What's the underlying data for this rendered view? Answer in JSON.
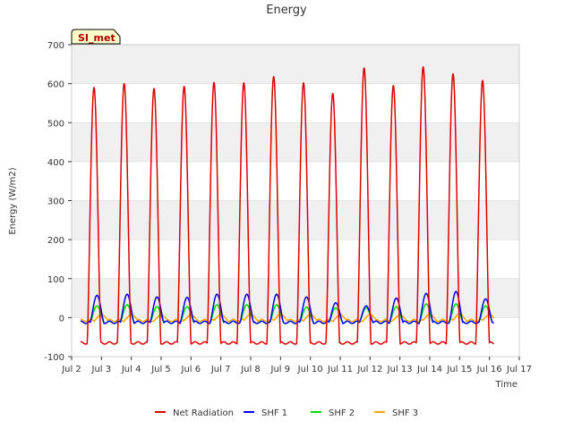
{
  "chart_data": {
    "type": "line",
    "title": "Energy",
    "xlabel": "Time",
    "ylabel": "Energy (W/m2)",
    "ylim": [
      -100,
      700
    ],
    "xlim": [
      2,
      17
    ],
    "yticks": [
      -100,
      0,
      100,
      200,
      300,
      400,
      500,
      600,
      700
    ],
    "xticks": [
      {
        "v": 2,
        "label": "Jul 2"
      },
      {
        "v": 3,
        "label": "Jul 3"
      },
      {
        "v": 4,
        "label": "Jul 4"
      },
      {
        "v": 5,
        "label": "Jul 5"
      },
      {
        "v": 6,
        "label": "Jul 6"
      },
      {
        "v": 7,
        "label": "Jul 7"
      },
      {
        "v": 8,
        "label": "Jul 8"
      },
      {
        "v": 9,
        "label": "Jul 9"
      },
      {
        "v": 10,
        "label": "Jul 10"
      },
      {
        "v": 11,
        "label": "Jul 11"
      },
      {
        "v": 12,
        "label": "Jul 12"
      },
      {
        "v": 13,
        "label": "Jul 13"
      },
      {
        "v": 14,
        "label": "Jul 14"
      },
      {
        "v": 15,
        "label": "Jul 15"
      },
      {
        "v": 16,
        "label": "Jul 16"
      },
      {
        "v": 17,
        "label": "Jul 17"
      }
    ],
    "grid": true,
    "annotation": "SI_met",
    "legend_position": "bottom",
    "data_start": 2.3,
    "data_end": 16.15,
    "series": [
      {
        "name": "Net Radiation",
        "color": "#dd0000",
        "night": -65,
        "days": [
          {
            "noon": 2.75,
            "peak": 590
          },
          {
            "noon": 3.76,
            "peak": 600
          },
          {
            "noon": 4.76,
            "peak": 587
          },
          {
            "noon": 5.77,
            "peak": 593
          },
          {
            "noon": 6.77,
            "peak": 603
          },
          {
            "noon": 7.77,
            "peak": 602
          },
          {
            "noon": 8.77,
            "peak": 618
          },
          {
            "noon": 9.77,
            "peak": 602
          },
          {
            "noon": 10.75,
            "peak": 575
          },
          {
            "noon": 11.8,
            "peak": 640
          },
          {
            "noon": 12.78,
            "peak": 595
          },
          {
            "noon": 13.78,
            "peak": 643
          },
          {
            "noon": 14.78,
            "peak": 625
          },
          {
            "noon": 15.77,
            "peak": 608
          }
        ]
      },
      {
        "name": "SHF 1",
        "color": "#0000ee",
        "night": -12,
        "days": [
          {
            "noon": 2.85,
            "peak": 57
          },
          {
            "noon": 3.86,
            "peak": 60
          },
          {
            "noon": 4.86,
            "peak": 53
          },
          {
            "noon": 5.87,
            "peak": 52
          },
          {
            "noon": 6.87,
            "peak": 60
          },
          {
            "noon": 7.87,
            "peak": 60
          },
          {
            "noon": 8.87,
            "peak": 60
          },
          {
            "noon": 9.87,
            "peak": 53
          },
          {
            "noon": 10.85,
            "peak": 38
          },
          {
            "noon": 11.87,
            "peak": 30
          },
          {
            "noon": 12.88,
            "peak": 50
          },
          {
            "noon": 13.88,
            "peak": 62
          },
          {
            "noon": 14.88,
            "peak": 67
          },
          {
            "noon": 15.87,
            "peak": 48
          }
        ]
      },
      {
        "name": "SHF 2",
        "color": "#00dd00",
        "night": -12,
        "days": [
          {
            "noon": 2.85,
            "peak": 30
          },
          {
            "noon": 3.86,
            "peak": 33
          },
          {
            "noon": 4.86,
            "peak": 28
          },
          {
            "noon": 5.87,
            "peak": 28
          },
          {
            "noon": 6.87,
            "peak": 33
          },
          {
            "noon": 7.87,
            "peak": 33
          },
          {
            "noon": 8.87,
            "peak": 33
          },
          {
            "noon": 9.87,
            "peak": 27
          },
          {
            "noon": 10.85,
            "peak": 25
          },
          {
            "noon": 11.87,
            "peak": 25
          },
          {
            "noon": 12.88,
            "peak": 28
          },
          {
            "noon": 13.88,
            "peak": 35
          },
          {
            "noon": 14.88,
            "peak": 35
          },
          {
            "noon": 15.87,
            "peak": 30
          }
        ]
      },
      {
        "name": "SHF 3",
        "color": "#ffa500",
        "night": -7,
        "days": [
          {
            "noon": 3.0,
            "peak": 8
          },
          {
            "noon": 4.0,
            "peak": 8
          },
          {
            "noon": 5.0,
            "peak": 7
          },
          {
            "noon": 6.0,
            "peak": 7
          },
          {
            "noon": 7.0,
            "peak": 8
          },
          {
            "noon": 8.0,
            "peak": 9
          },
          {
            "noon": 9.0,
            "peak": 9
          },
          {
            "noon": 10.0,
            "peak": 8
          },
          {
            "noon": 11.0,
            "peak": 7
          },
          {
            "noon": 12.0,
            "peak": 8
          },
          {
            "noon": 13.0,
            "peak": 7
          },
          {
            "noon": 14.0,
            "peak": 9
          },
          {
            "noon": 15.0,
            "peak": 10
          },
          {
            "noon": 16.0,
            "peak": 8
          }
        ]
      }
    ]
  }
}
